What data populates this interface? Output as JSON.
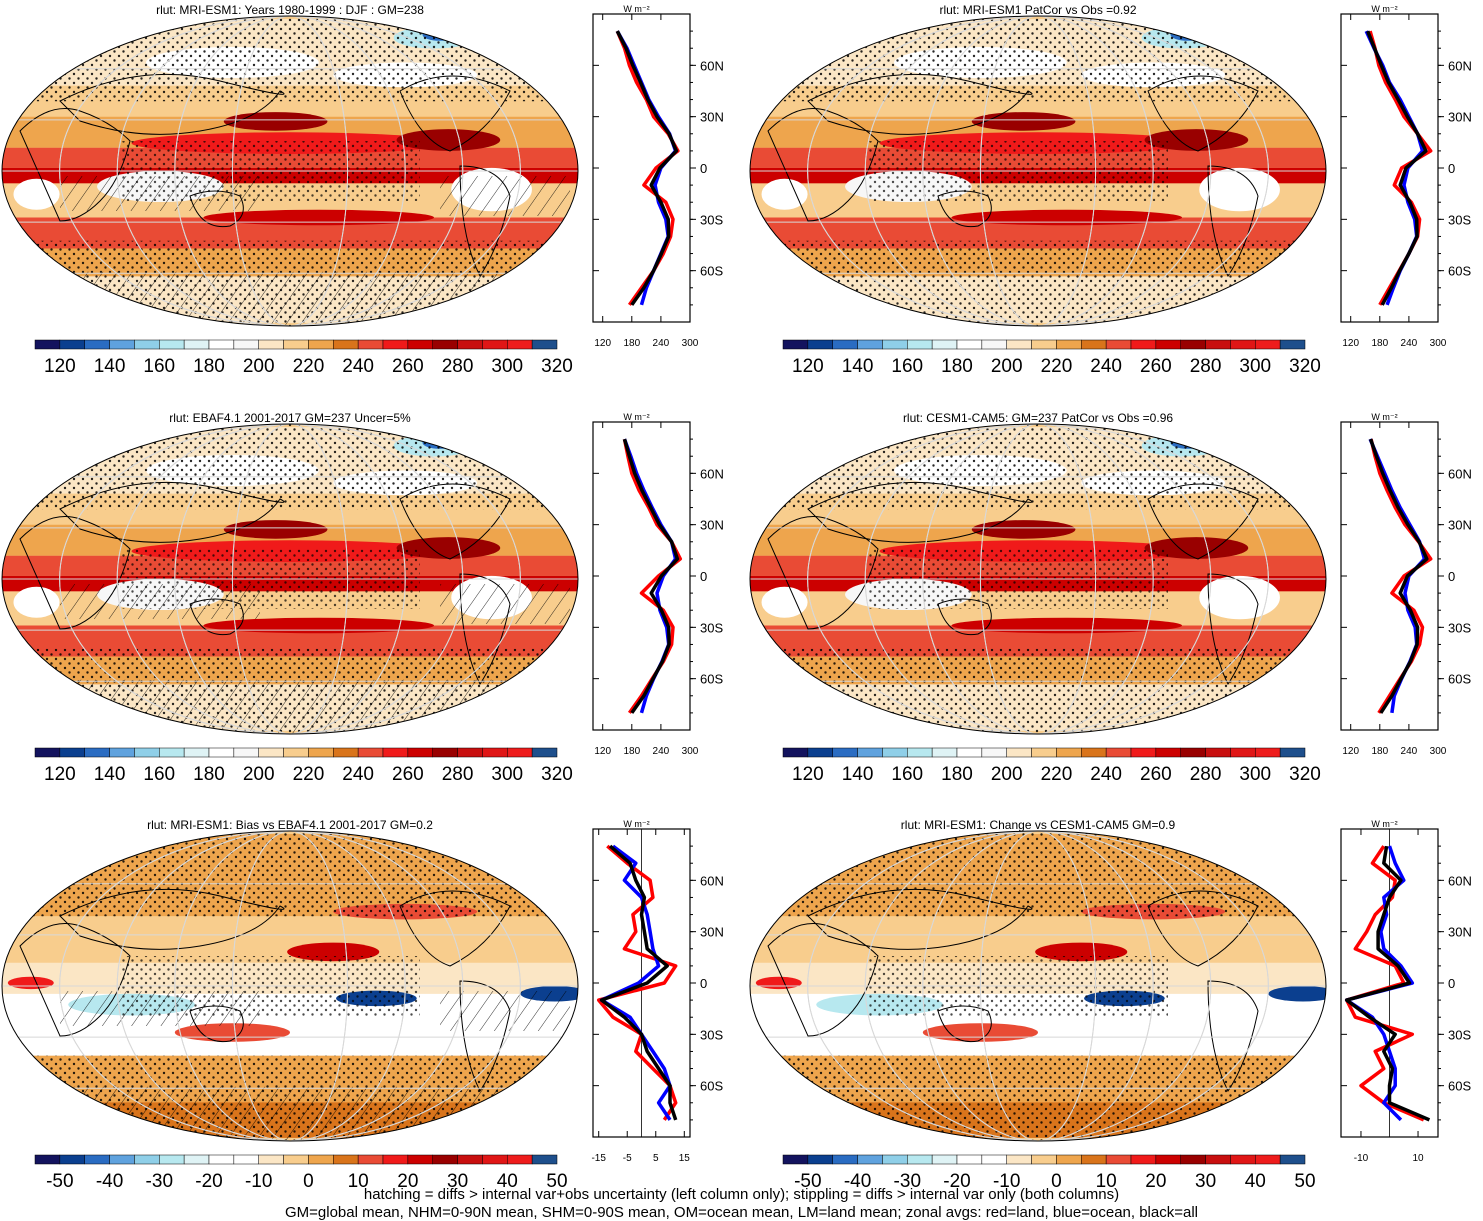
{
  "colors": {
    "absolute": [
      "#13135e",
      "#0b3f8f",
      "#2a6cc2",
      "#5fa2de",
      "#8fcfe8",
      "#b7e8ef",
      "#dff3f5",
      "#ffffff",
      "#f7f7f7",
      "#fbe6c5",
      "#f8cd8d",
      "#eea54d",
      "#d9741b",
      "#e94b35",
      "#f01a1a",
      "#cc0000",
      "#990000",
      "#c80f0f",
      "#e01616",
      "#ee1c1c",
      "#1e4f8c"
    ],
    "difference": [
      "#13135e",
      "#0b3f8f",
      "#2a6cc2",
      "#5fa2de",
      "#8fcfe8",
      "#b7e8ef",
      "#dff3f5",
      "#ffffff",
      "#ffffff",
      "#fbe6c5",
      "#f8cd8d",
      "#eea54d",
      "#d9741b",
      "#e94b35",
      "#f01a1a",
      "#cc0000",
      "#990000",
      "#c80f0f",
      "#e01616",
      "#ee1c1c",
      "#1e4f8c"
    ],
    "land": "#ff0000",
    "ocean": "#0000ff",
    "all": "#000000"
  },
  "units": "W m⁻²",
  "lat_ticks": [
    "60N",
    "30N",
    "0",
    "30S",
    "60S"
  ],
  "footnote": {
    "line1": "hatching = diffs > internal var+obs uncertainty (left column only); stippling = diffs > internal var only (both columns)",
    "line2": "GM=global mean, NHM=0-90N mean, SHM=0-90S mean, OM=ocean mean, LM=land mean; zonal avgs: red=land, blue=ocean, black=all"
  },
  "chart_data": [
    {
      "type": "heatmap",
      "title": "rlut: MRI-ESM1: Years 1980-1999 : DJF : GM=238",
      "colorbar_labels": [
        "120",
        "140",
        "160",
        "180",
        "200",
        "220",
        "240",
        "260",
        "280",
        "300",
        "320"
      ],
      "zonal_mean": {
        "xlim": [
          100,
          300
        ],
        "x_ticks": [
          "120",
          "180",
          "240",
          "300"
        ],
        "lat": [
          80,
          70,
          60,
          50,
          40,
          30,
          20,
          10,
          0,
          -10,
          -20,
          -30,
          -40,
          -50,
          -60,
          -70,
          -80
        ],
        "land": [
          150,
          165,
          175,
          190,
          210,
          225,
          255,
          275,
          230,
          205,
          250,
          265,
          260,
          245,
          225,
          200,
          175
        ],
        "ocean": [
          150,
          170,
          185,
          200,
          215,
          235,
          258,
          270,
          240,
          228,
          235,
          250,
          255,
          240,
          225,
          210,
          200
        ],
        "all": [
          150,
          168,
          182,
          198,
          213,
          232,
          257,
          272,
          238,
          220,
          240,
          255,
          256,
          241,
          225,
          205,
          180
        ]
      }
    },
    {
      "type": "heatmap",
      "title": "rlut: MRI-ESM1 PatCor vs Obs =0.92",
      "colorbar_labels": [
        "120",
        "140",
        "160",
        "180",
        "200",
        "220",
        "240",
        "260",
        "280",
        "300",
        "320"
      ],
      "zonal_mean": {
        "xlim": [
          100,
          300
        ],
        "x_ticks": [
          "120",
          "180",
          "240",
          "300"
        ],
        "lat": [
          80,
          70,
          60,
          50,
          40,
          30,
          20,
          10,
          0,
          -10,
          -20,
          -30,
          -40,
          -50,
          -60,
          -70,
          -80
        ],
        "land": [
          160,
          170,
          178,
          192,
          212,
          230,
          258,
          285,
          225,
          210,
          245,
          262,
          258,
          240,
          220,
          200,
          180
        ],
        "ocean": [
          152,
          168,
          186,
          200,
          222,
          240,
          258,
          268,
          238,
          230,
          238,
          252,
          256,
          240,
          222,
          208,
          195
        ],
        "all": [
          155,
          169,
          183,
          198,
          218,
          237,
          258,
          275,
          234,
          222,
          242,
          256,
          257,
          240,
          221,
          204,
          185
        ]
      }
    },
    {
      "type": "heatmap",
      "title": "rlut: EBAF4.1 2001-2017 GM=237 Uncer=5%",
      "colorbar_labels": [
        "120",
        "140",
        "160",
        "180",
        "200",
        "220",
        "240",
        "260",
        "280",
        "300",
        "320"
      ],
      "zonal_mean": {
        "xlim": [
          100,
          300
        ],
        "x_ticks": [
          "120",
          "180",
          "240",
          "300"
        ],
        "lat": [
          80,
          70,
          60,
          50,
          40,
          30,
          20,
          10,
          0,
          -10,
          -20,
          -30,
          -40,
          -50,
          -60,
          -70,
          -80
        ],
        "land": [
          165,
          172,
          180,
          195,
          215,
          232,
          262,
          280,
          235,
          200,
          245,
          265,
          262,
          245,
          222,
          200,
          175
        ],
        "ocean": [
          165,
          178,
          190,
          205,
          222,
          240,
          262,
          270,
          245,
          232,
          238,
          252,
          256,
          242,
          225,
          210,
          200
        ],
        "all": [
          165,
          175,
          186,
          201,
          219,
          237,
          262,
          274,
          241,
          220,
          241,
          256,
          257,
          243,
          224,
          205,
          180
        ]
      }
    },
    {
      "type": "heatmap",
      "title": "rlut: CESM1-CAM5: GM=237 PatCor vs Obs =0.96",
      "colorbar_labels": [
        "120",
        "140",
        "160",
        "180",
        "200",
        "220",
        "240",
        "260",
        "280",
        "300",
        "320"
      ],
      "zonal_mean": {
        "xlim": [
          100,
          300
        ],
        "x_ticks": [
          "120",
          "180",
          "240",
          "300"
        ],
        "lat": [
          80,
          70,
          60,
          50,
          40,
          30,
          20,
          10,
          0,
          -10,
          -20,
          -30,
          -40,
          -50,
          -60,
          -70,
          -80
        ],
        "land": [
          162,
          170,
          180,
          195,
          212,
          232,
          260,
          285,
          230,
          205,
          250,
          268,
          262,
          245,
          222,
          200,
          178
        ],
        "ocean": [
          160,
          175,
          190,
          205,
          222,
          242,
          262,
          272,
          240,
          232,
          238,
          253,
          256,
          242,
          225,
          210,
          205
        ],
        "all": [
          161,
          173,
          186,
          201,
          218,
          238,
          261,
          277,
          237,
          222,
          243,
          258,
          257,
          243,
          224,
          205,
          182
        ]
      }
    },
    {
      "type": "heatmap",
      "title": "rlut: MRI-ESM1: Bias vs EBAF4.1 2001-2017 GM=0.2",
      "colorbar_labels": [
        "-50",
        "-40",
        "-30",
        "-20",
        "-10",
        "0",
        "10",
        "20",
        "30",
        "40",
        "50"
      ],
      "zonal_mean": {
        "xlim": [
          -17,
          17
        ],
        "x_ticks": [
          "-15",
          "-5",
          "5",
          "15"
        ],
        "zero_line": 0,
        "lat": [
          80,
          70,
          60,
          50,
          40,
          30,
          20,
          10,
          0,
          -10,
          -20,
          -30,
          -40,
          -50,
          -60,
          -70,
          -80
        ],
        "land": [
          -12,
          -5,
          3,
          4,
          -3,
          -2,
          -6,
          12,
          8,
          -15,
          -10,
          0,
          -2,
          4,
          10,
          12,
          8
        ],
        "ocean": [
          -10,
          -2,
          -6,
          0,
          2,
          3,
          4,
          6,
          -1,
          -14,
          -4,
          0,
          4,
          8,
          10,
          6,
          10
        ],
        "all": [
          -11,
          -4,
          -2,
          1,
          0,
          1,
          2,
          9,
          2,
          -14,
          -6,
          0,
          2,
          6,
          10,
          10,
          12
        ]
      }
    },
    {
      "type": "heatmap",
      "title": "rlut: MRI-ESM1: Change vs CESM1-CAM5 GM=0.9",
      "colorbar_labels": [
        "-50",
        "-40",
        "-30",
        "-20",
        "-10",
        "0",
        "10",
        "20",
        "30",
        "40",
        "50"
      ],
      "zonal_mean": {
        "xlim": [
          -17,
          17
        ],
        "x_ticks": [
          "-10",
          "10"
        ],
        "zero_line": 0,
        "lat": [
          80,
          70,
          60,
          50,
          40,
          30,
          20,
          10,
          0,
          -10,
          -20,
          -30,
          -40,
          -50,
          -60,
          -70,
          -80
        ],
        "land": [
          -2,
          -6,
          2,
          1,
          -5,
          -8,
          -12,
          2,
          5,
          -15,
          -12,
          8,
          -5,
          -2,
          -10,
          -2,
          12
        ],
        "ocean": [
          0,
          2,
          5,
          -2,
          -1,
          -3,
          -2,
          4,
          8,
          -15,
          -6,
          -2,
          0,
          2,
          2,
          -2,
          4
        ],
        "all": [
          -1,
          -2,
          4,
          0,
          -2,
          -4,
          -4,
          3,
          7,
          -15,
          -7,
          2,
          -2,
          1,
          0,
          0,
          14
        ]
      }
    }
  ]
}
